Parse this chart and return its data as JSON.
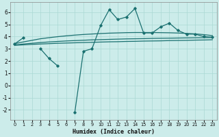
{
  "xlabel": "Humidex (Indice chaleur)",
  "x": [
    0,
    1,
    2,
    3,
    4,
    5,
    6,
    7,
    8,
    9,
    10,
    11,
    12,
    13,
    14,
    15,
    16,
    17,
    18,
    19,
    20,
    21,
    22,
    23
  ],
  "line_main": [
    3.4,
    3.9,
    null,
    3.0,
    2.2,
    1.6,
    null,
    -2.2,
    2.8,
    3.0,
    4.9,
    6.2,
    5.4,
    5.6,
    6.3,
    4.3,
    4.3,
    4.8,
    5.1,
    4.5,
    4.2,
    4.2,
    4.0,
    3.95
  ],
  "line_top": [
    3.42,
    3.56,
    3.69,
    3.82,
    3.91,
    3.99,
    4.06,
    4.12,
    4.17,
    4.21,
    4.25,
    4.28,
    4.3,
    4.32,
    4.33,
    4.33,
    4.33,
    4.32,
    4.31,
    4.29,
    4.26,
    4.22,
    4.16,
    4.08
  ],
  "line_mid": [
    3.32,
    3.39,
    3.45,
    3.51,
    3.56,
    3.6,
    3.64,
    3.67,
    3.7,
    3.73,
    3.75,
    3.77,
    3.79,
    3.81,
    3.82,
    3.83,
    3.85,
    3.86,
    3.87,
    3.88,
    3.89,
    3.9,
    3.91,
    3.92
  ],
  "line_bot": [
    3.28,
    3.32,
    3.36,
    3.39,
    3.42,
    3.45,
    3.47,
    3.49,
    3.51,
    3.53,
    3.55,
    3.57,
    3.58,
    3.6,
    3.61,
    3.63,
    3.64,
    3.65,
    3.67,
    3.68,
    3.69,
    3.71,
    3.72,
    3.74
  ],
  "bg_color": "#ccecea",
  "line_color": "#1a7070",
  "grid_color": "#aad8d4",
  "ylim": [
    -2.8,
    6.8
  ],
  "xlim": [
    -0.5,
    23.5
  ],
  "yticks": [
    -2,
    -1,
    0,
    1,
    2,
    3,
    4,
    5,
    6
  ],
  "xticks": [
    0,
    1,
    2,
    3,
    4,
    5,
    6,
    7,
    8,
    9,
    10,
    11,
    12,
    13,
    14,
    15,
    16,
    17,
    18,
    19,
    20,
    21,
    22,
    23
  ]
}
